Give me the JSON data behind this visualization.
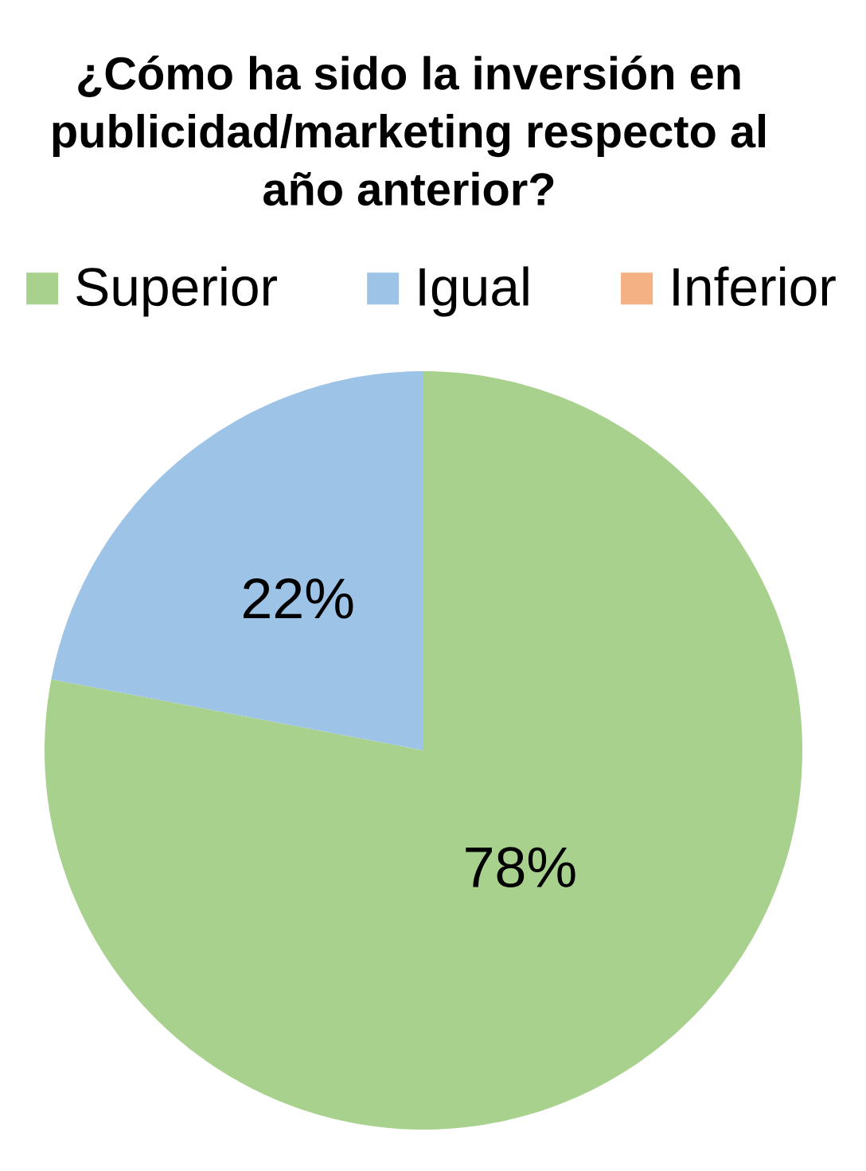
{
  "chart_data": {
    "type": "pie",
    "title": "¿Cómo ha sido la inversión en publicidad/marketing respecto al año anterior?",
    "categories": [
      "Superior",
      "Igual",
      "Inferior"
    ],
    "values": [
      78,
      22,
      0
    ],
    "colors": [
      "#a9d18e",
      "#9dc3e6",
      "#f4b183"
    ],
    "value_labels": [
      "78%",
      "22%",
      null
    ],
    "legend": "top"
  }
}
